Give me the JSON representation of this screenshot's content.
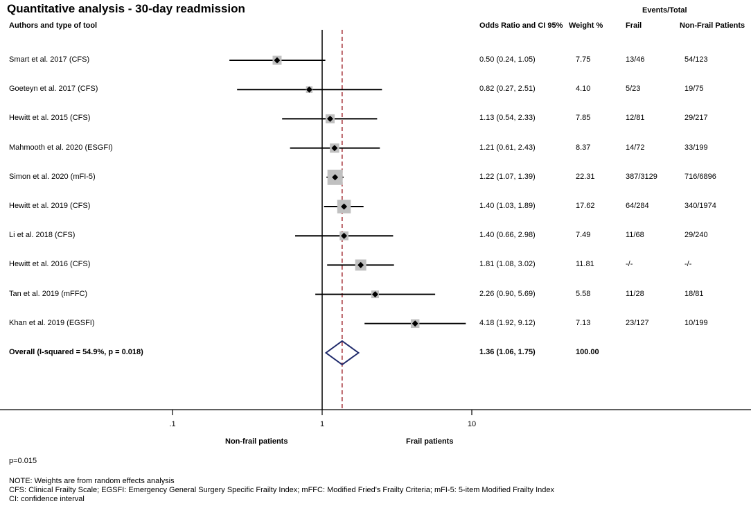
{
  "title": "Quantitative analysis - 30-day readmission",
  "headers": {
    "study": "Authors and  type of tool",
    "or_ci": "Odds Ratio and CI 95%",
    "weight": "Weight %",
    "events_total": "Events/Total",
    "frail": "Frail",
    "nonfrail": "Non-Frail Patients"
  },
  "chart_data": {
    "type": "forest",
    "scale": "log",
    "reference_line": 1,
    "overall_effect_line": 1.36,
    "xticks": [
      {
        "value": 0.1,
        "label": ".1"
      },
      {
        "value": 1,
        "label": "1"
      },
      {
        "value": 10,
        "label": "10"
      }
    ],
    "xlim": [
      0.017,
      1000
    ],
    "left_label": "Non-frail patients",
    "right_label": "Frail patients",
    "studies": [
      {
        "label": "Smart  et al. 2017 (CFS)",
        "or": 0.5,
        "lo": 0.24,
        "hi": 1.05,
        "or_text": "0.50 (0.24, 1.05)",
        "weight": "7.75",
        "frail": "13/46",
        "nonfrail": "54/123"
      },
      {
        "label": "Goeteyn et al. 2017 (CFS)",
        "or": 0.82,
        "lo": 0.27,
        "hi": 2.51,
        "or_text": "0.82 (0.27, 2.51)",
        "weight": "4.10",
        "frail": "5/23",
        "nonfrail": "19/75"
      },
      {
        "label": "Hewitt et al. 2015 (CFS)",
        "or": 1.13,
        "lo": 0.54,
        "hi": 2.33,
        "or_text": "1.13 (0.54, 2.33)",
        "weight": "7.85",
        "frail": "12/81",
        "nonfrail": "29/217"
      },
      {
        "label": "Mahmooth  et al. 2020 (ESGFI)",
        "or": 1.21,
        "lo": 0.61,
        "hi": 2.43,
        "or_text": "1.21 (0.61, 2.43)",
        "weight": "8.37",
        "frail": "14/72",
        "nonfrail": "33/199"
      },
      {
        "label": "Simon  et al. 2020 (mFI-5)",
        "or": 1.22,
        "lo": 1.07,
        "hi": 1.39,
        "or_text": "1.22 (1.07, 1.39)",
        "weight": "22.31",
        "frail": "387/3129",
        "nonfrail": "716/6896"
      },
      {
        "label": "Hewitt et al. 2019 (CFS)",
        "or": 1.4,
        "lo": 1.03,
        "hi": 1.89,
        "or_text": "1.40 (1.03, 1.89)",
        "weight": "17.62",
        "frail": "64/284",
        "nonfrail": "340/1974"
      },
      {
        "label": "Li  et al. 2018 (CFS)",
        "or": 1.4,
        "lo": 0.66,
        "hi": 2.98,
        "or_text": "1.40 (0.66, 2.98)",
        "weight": "7.49",
        "frail": "11/68",
        "nonfrail": "29/240"
      },
      {
        "label": "Hewitt et al. 2016 (CFS)",
        "or": 1.81,
        "lo": 1.08,
        "hi": 3.02,
        "or_text": "1.81 (1.08, 3.02)",
        "weight": "11.81",
        "frail": "-/-",
        "nonfrail": "-/-"
      },
      {
        "label": "Tan  et al. 2019 (mFFC)",
        "or": 2.26,
        "lo": 0.9,
        "hi": 5.69,
        "or_text": "2.26 (0.90, 5.69)",
        "weight": "5.58",
        "frail": "11/28",
        "nonfrail": "18/81"
      },
      {
        "label": "Khan et al. 2019 (EGSFI)",
        "or": 4.18,
        "lo": 1.92,
        "hi": 9.12,
        "or_text": "4.18 (1.92, 9.12)",
        "weight": "7.13",
        "frail": "23/127",
        "nonfrail": "10/199"
      }
    ],
    "overall": {
      "label": "Overall  (I-squared = 54.9%, p = 0.018)",
      "or": 1.36,
      "lo": 1.06,
      "hi": 1.75,
      "or_text": "1.36 (1.06, 1.75)",
      "weight": "100.00"
    }
  },
  "footer": {
    "p": "p=0.015",
    "note1": "NOTE: Weights are from random effects analysis",
    "note2": "CFS: Clinical Frailty Scale; EGSFI: Emergency General Surgery Specific Frailty Index; mFFC: Modified Fried's Frailty Criteria; mFI-5: 5-item Modified Frailty Index",
    "note3": "CI: confidence interval"
  },
  "colors": {
    "box": "#c0c0c0",
    "diamond": "#1f2a6b",
    "effect_line": "#a0242b",
    "line": "#000000"
  }
}
